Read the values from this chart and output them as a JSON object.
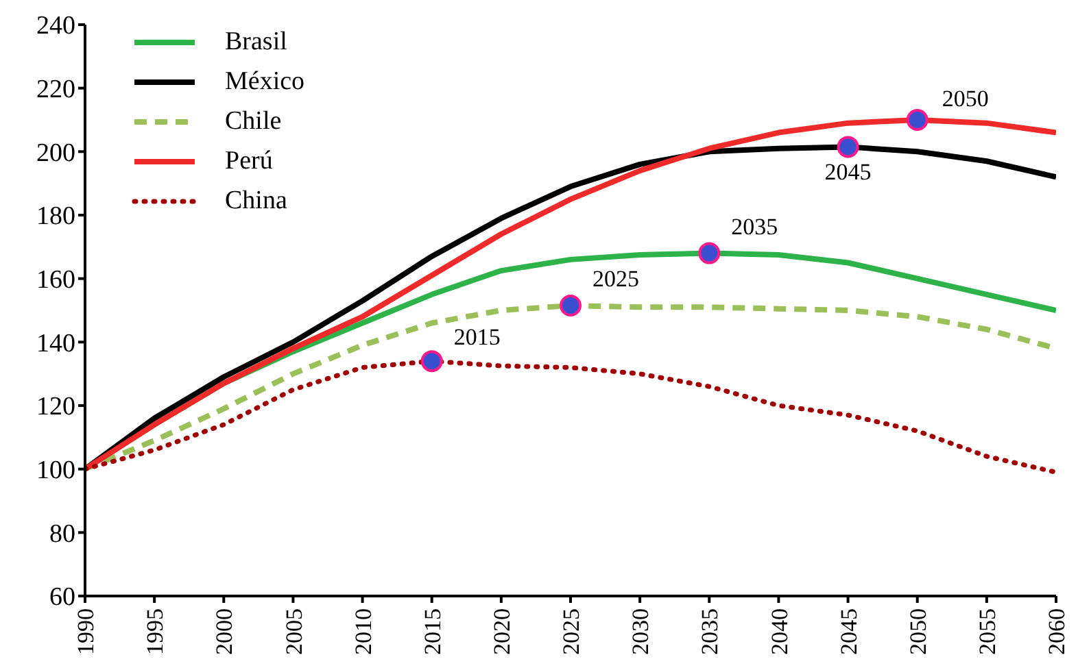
{
  "chart_data": {
    "type": "line",
    "x": [
      1990,
      1995,
      2000,
      2005,
      2010,
      2015,
      2020,
      2025,
      2030,
      2035,
      2040,
      2045,
      2050,
      2055,
      2060
    ],
    "series": [
      {
        "name": "Brasil",
        "color": "#2db34a",
        "line_style": "solid",
        "values": [
          100,
          114,
          127,
          137,
          146,
          155,
          162.5,
          166,
          167.5,
          168,
          167.5,
          165,
          160,
          155,
          150
        ]
      },
      {
        "name": "México",
        "color": "#000000",
        "line_style": "solid",
        "values": [
          100,
          116,
          129,
          140,
          153,
          167,
          179,
          189,
          196,
          200,
          201,
          201.5,
          200,
          197,
          192
        ]
      },
      {
        "name": "Chile",
        "color": "#9bc05a",
        "line_style": "dashed",
        "values": [
          100,
          109,
          119,
          130,
          139,
          146,
          150,
          151.5,
          151,
          151,
          150.5,
          150,
          148,
          144,
          138
        ]
      },
      {
        "name": "Perú",
        "color": "#ee2a2a",
        "line_style": "solid",
        "values": [
          100,
          114,
          127,
          138,
          148,
          161,
          174,
          185,
          194,
          201,
          206,
          209,
          210,
          209,
          206
        ]
      },
      {
        "name": "China",
        "color": "#a00000",
        "line_style": "dotted",
        "values": [
          100,
          106,
          114,
          125,
          132,
          134,
          132.5,
          132,
          130,
          126,
          120,
          117,
          112,
          104,
          99
        ]
      }
    ],
    "annotations": [
      {
        "text": "2015",
        "x": 2015,
        "y": 134
      },
      {
        "text": "2025",
        "x": 2025,
        "y": 151.5
      },
      {
        "text": "2035",
        "x": 2035,
        "y": 168
      },
      {
        "text": "2045",
        "x": 2045,
        "y": 201.5
      },
      {
        "text": "2050",
        "x": 2050,
        "y": 210
      }
    ],
    "xlim": [
      1990,
      2060
    ],
    "xticks": [
      1990,
      1995,
      2000,
      2005,
      2010,
      2015,
      2020,
      2025,
      2030,
      2035,
      2040,
      2045,
      2050,
      2055,
      2060
    ],
    "ylim": [
      60,
      240
    ],
    "yticks": [
      60,
      80,
      100,
      120,
      140,
      160,
      180,
      200,
      220,
      240
    ],
    "grid": false,
    "legend": "top left",
    "marker": "none"
  }
}
